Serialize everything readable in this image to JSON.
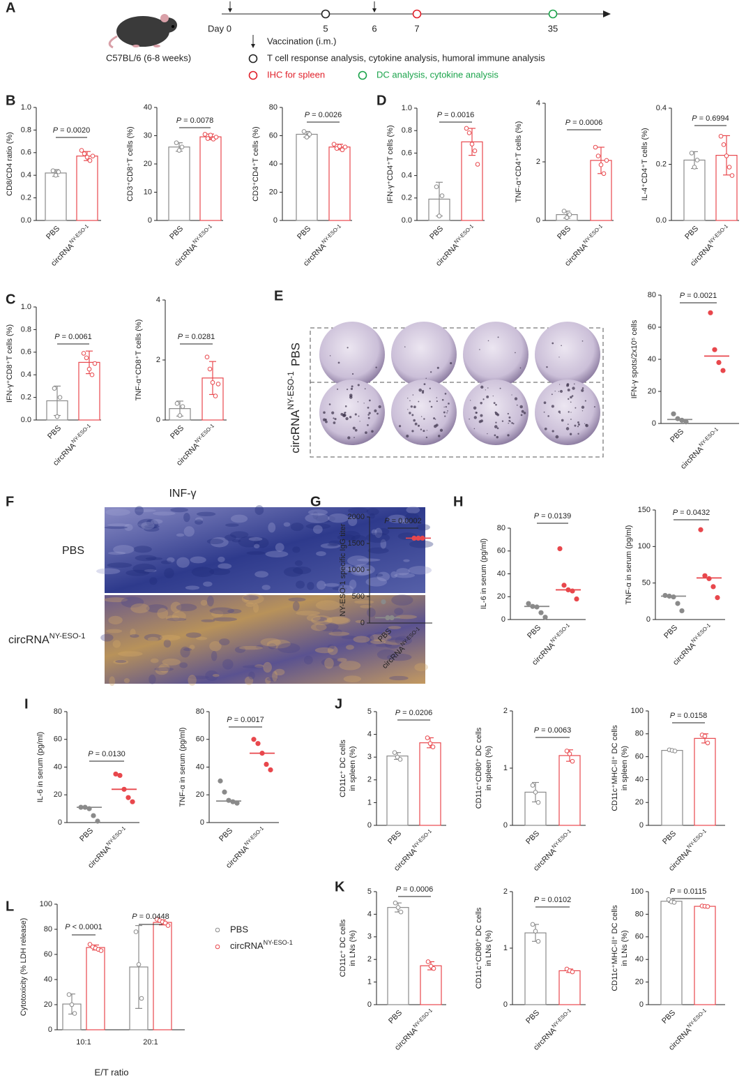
{
  "timeline": {
    "panel": "A",
    "strain": "C57BL/6 (6-8 weeks)",
    "days": [
      "Day 0",
      "5",
      "6",
      "7",
      "35"
    ],
    "vaccination": "Vaccination (i.m.)",
    "legend": [
      {
        "text": "T cell response analysis, cytokine analysis, humoral immune analysis",
        "color": "#222222"
      },
      {
        "text": "IHC for spleen",
        "color": "#e0202a"
      },
      {
        "text": "DC analysis, cytokine analysis",
        "color": "#1aa34a"
      }
    ]
  },
  "elispot": {
    "panel": "E",
    "rows": [
      "PBS",
      {
        "text": "circRNA",
        "sup": "NY-ESO-1"
      }
    ]
  },
  "histology": {
    "panel": "F",
    "title": "INF-γ",
    "rows": [
      "PBS",
      {
        "text": "circRNA",
        "sup": "NY-ESO-1"
      }
    ]
  },
  "chart_data": [
    {
      "type": "bar",
      "panel": "B",
      "ylabel": "CD8/CD4 ratio (%)",
      "categories": [
        "PBS",
        {
          "text": "circRNA",
          "sup": "NY-ESO-1"
        }
      ],
      "colors": [
        "#8a8a8a",
        "#e8474c"
      ],
      "values": [
        0.42,
        0.57
      ],
      "errors": [
        0.03,
        0.04
      ],
      "points": [
        [
          0.44,
          0.4,
          0.43
        ],
        [
          0.62,
          0.59,
          0.56,
          0.53,
          0.57
        ]
      ],
      "ylim": [
        0,
        1
      ],
      "yticks": [
        {
          "value": 0,
          "label": "0.0"
        },
        0.2,
        0.4,
        0.6,
        0.8,
        {
          "value": 1,
          "label": "1.0"
        }
      ],
      "annotation": "P = 0.0020"
    },
    {
      "type": "bar",
      "ylabel": "CD3⁺CD8⁺T cells (%)",
      "categories": [
        "PBS",
        {
          "text": "circRNA",
          "sup": "NY-ESO-1"
        }
      ],
      "colors": [
        "#8a8a8a",
        "#e8474c"
      ],
      "values": [
        26,
        29.6
      ],
      "errors": [
        1.5,
        1
      ],
      "points": [
        [
          27.5,
          24.8,
          26
        ],
        [
          30.5,
          29,
          30.2,
          28.8,
          29.5
        ]
      ],
      "ylim": [
        0,
        40
      ],
      "yticks": [
        0,
        10,
        20,
        30,
        40
      ],
      "annotation": "P = 0.0078"
    },
    {
      "type": "bar",
      "ylabel": "CD3⁺CD4⁺T cells (%)",
      "categories": [
        "PBS",
        {
          "text": "circRNA",
          "sup": "NY-ESO-1"
        }
      ],
      "colors": [
        "#8a8a8a",
        "#e8474c"
      ],
      "values": [
        61,
        52
      ],
      "errors": [
        2,
        2
      ],
      "points": [
        [
          63,
          59,
          61
        ],
        [
          54,
          51,
          52.5,
          50,
          52
        ]
      ],
      "ylim": [
        0,
        80
      ],
      "yticks": [
        0,
        20,
        40,
        60,
        80
      ],
      "annotation": "P = 0.0026"
    },
    {
      "type": "bar",
      "panel": "D",
      "ylabel": "IFN-γ⁺CD4⁺T cells (%)",
      "categories": [
        "PBS",
        {
          "text": "circRNA",
          "sup": "NY-ESO-1"
        }
      ],
      "colors": [
        "#8a8a8a",
        "#e8474c"
      ],
      "values": [
        0.19,
        0.7
      ],
      "errors": [
        0.15,
        0.12
      ],
      "points": [
        [
          0.3,
          0.04,
          0.22
        ],
        [
          0.82,
          0.78,
          0.68,
          0.62,
          0.5
        ]
      ],
      "ylim": [
        0,
        1
      ],
      "yticks": [
        {
          "value": 0,
          "label": "0.0"
        },
        0.2,
        0.4,
        0.6,
        0.8,
        {
          "value": 1,
          "label": "1.0"
        }
      ],
      "annotation": "P = 0.0016"
    },
    {
      "type": "bar",
      "ylabel": "TNF-α⁺CD4⁺T cells (%)",
      "categories": [
        "PBS",
        {
          "text": "circRNA",
          "sup": "NY-ESO-1"
        }
      ],
      "colors": [
        "#8a8a8a",
        "#e8474c"
      ],
      "values": [
        0.2,
        2.05
      ],
      "errors": [
        0.12,
        0.45
      ],
      "points": [
        [
          0.32,
          0.1,
          0.2
        ],
        [
          2.5,
          2.2,
          1.9,
          1.6,
          2.05
        ]
      ],
      "ylim": [
        0,
        4
      ],
      "yticks": [
        0,
        2,
        4
      ],
      "annotation": "P = 0.0006"
    },
    {
      "type": "bar",
      "ylabel": "IL-4⁺CD4⁺T cells (%)",
      "categories": [
        "PBS",
        {
          "text": "circRNA",
          "sup": "NY-ESO-1"
        }
      ],
      "colors": [
        "#8a8a8a",
        "#e8474c"
      ],
      "values": [
        0.215,
        0.232
      ],
      "errors": [
        0.03,
        0.07
      ],
      "points": [
        [
          0.24,
          0.19,
          0.215
        ],
        [
          0.3,
          0.27,
          0.23,
          0.19,
          0.16
        ]
      ],
      "ylim": [
        0,
        0.4
      ],
      "yticks": [
        {
          "value": 0,
          "label": "0.0"
        },
        0.2,
        0.4
      ],
      "annotation": "P = 0.6994"
    },
    {
      "type": "bar",
      "panel": "C",
      "ylabel": "IFN-γ⁺CD8⁺T cells (%)",
      "categories": [
        "PBS",
        {
          "text": "circRNA",
          "sup": "NY-ESO-1"
        }
      ],
      "colors": [
        "#8a8a8a",
        "#e8474c"
      ],
      "values": [
        0.17,
        0.51
      ],
      "errors": [
        0.13,
        0.1
      ],
      "points": [
        [
          0.28,
          0.03,
          0.2
        ],
        [
          0.59,
          0.55,
          0.45,
          0.4,
          0.5
        ]
      ],
      "ylim": [
        0,
        1
      ],
      "yticks": [
        {
          "value": 0,
          "label": "0.0"
        },
        0.2,
        0.4,
        0.6,
        0.8,
        {
          "value": 1,
          "label": "1.0"
        }
      ],
      "annotation": "P = 0.0061"
    },
    {
      "type": "bar",
      "ylabel": "TNF-α⁺CD8⁺T cells (%)",
      "categories": [
        "PBS",
        {
          "text": "circRNA",
          "sup": "NY-ESO-1"
        }
      ],
      "colors": [
        "#8a8a8a",
        "#e8474c"
      ],
      "values": [
        0.38,
        1.4
      ],
      "errors": [
        0.25,
        0.55
      ],
      "points": [
        [
          0.55,
          0.15,
          0.45
        ],
        [
          2.1,
          1.7,
          1.25,
          0.8,
          1.2
        ]
      ],
      "ylim": [
        0,
        4
      ],
      "yticks": [
        0,
        2,
        4
      ],
      "annotation": "P = 0.0281"
    },
    {
      "type": "dot",
      "ylabel": "IFN-γ spots/2x10⁵ cells",
      "categories": [
        "PBS",
        {
          "text": "circRNA",
          "sup": "NY-ESO-1"
        }
      ],
      "colors": [
        "#8a8a8a",
        "#e8474c"
      ],
      "values": [
        2.5,
        42
      ],
      "points": [
        [
          6,
          3,
          2,
          1
        ],
        [
          69,
          46,
          38,
          33
        ]
      ],
      "ylim": [
        0,
        80
      ],
      "yticks": [
        0,
        20,
        40,
        60,
        80
      ],
      "annotation": "P = 0.0021"
    },
    {
      "type": "dot",
      "panel": "G",
      "ylabel": "NY-ESO-1 specific IgG titer",
      "categories": [
        "PBS",
        {
          "text": "circRNA",
          "sup": "NY-ESO-1"
        }
      ],
      "colors": [
        "#8a8a8a",
        "#e8474c"
      ],
      "values": [
        100,
        1600
      ],
      "points": [
        [
          400,
          100,
          100
        ],
        [
          1600,
          1600,
          1600
        ]
      ],
      "ylim": [
        0,
        2000
      ],
      "yticks": [
        0,
        500,
        1000,
        1500,
        2000
      ],
      "annotation": "P = 0.0002"
    },
    {
      "type": "dot",
      "panel": "H",
      "ylabel": "IL-6 in serum (pg/ml)",
      "categories": [
        "PBS",
        {
          "text": "circRNA",
          "sup": "NY-ESO-1"
        }
      ],
      "colors": [
        "#8a8a8a",
        "#e8474c"
      ],
      "values": [
        11.5,
        26
      ],
      "points": [
        [
          14,
          11.5,
          11,
          6,
          2
        ],
        [
          62,
          30,
          26,
          25,
          18
        ]
      ],
      "ylim": [
        0,
        80
      ],
      "yticks": [
        0,
        20,
        40,
        60,
        80
      ],
      "annotation": "P = 0.0139"
    },
    {
      "type": "dot",
      "ylabel": "TNF-α in serum (pg/ml)",
      "categories": [
        "PBS",
        {
          "text": "circRNA",
          "sup": "NY-ESO-1"
        }
      ],
      "colors": [
        "#8a8a8a",
        "#e8474c"
      ],
      "values": [
        32,
        57
      ],
      "points": [
        [
          33,
          32,
          31,
          22,
          12
        ],
        [
          123,
          60,
          56,
          45,
          30
        ]
      ],
      "ylim": [
        0,
        150
      ],
      "yticks": [
        0,
        50,
        100,
        150
      ],
      "annotation": "P = 0.0432"
    },
    {
      "type": "dot",
      "panel": "I",
      "ylabel": "IL-6 in serum (pg/ml)",
      "categories": [
        "PBS",
        {
          "text": "circRNA",
          "sup": "NY-ESO-1"
        }
      ],
      "colors": [
        "#8a8a8a",
        "#e8474c"
      ],
      "values": [
        11,
        24
      ],
      "points": [
        [
          11,
          11,
          10,
          5,
          1
        ],
        [
          35,
          34,
          24,
          18,
          15
        ]
      ],
      "ylim": [
        0,
        80
      ],
      "yticks": [
        0,
        20,
        40,
        60,
        80
      ],
      "annotation": "P = 0.0130"
    },
    {
      "type": "dot",
      "ylabel": "TNF-α in serum (pg/ml)",
      "categories": [
        "PBS",
        {
          "text": "circRNA",
          "sup": "NY-ESO-1"
        }
      ],
      "colors": [
        "#8a8a8a",
        "#e8474c"
      ],
      "values": [
        15.5,
        50
      ],
      "points": [
        [
          30,
          22,
          16,
          15,
          14
        ],
        [
          60,
          57,
          50,
          42,
          38
        ]
      ],
      "ylim": [
        0,
        80
      ],
      "yticks": [
        0,
        20,
        40,
        60,
        80
      ],
      "annotation": "P = 0.0017"
    },
    {
      "type": "bar",
      "panel": "J",
      "ylabel": [
        "CD11c⁺ DC cells",
        "in spleen (%)"
      ],
      "categories": [
        "PBS",
        {
          "text": "circRNA",
          "sup": "NY-ESO-1"
        }
      ],
      "colors": [
        "#8a8a8a",
        "#e8474c"
      ],
      "values": [
        3.05,
        3.63
      ],
      "errors": [
        0.15,
        0.22
      ],
      "points": [
        [
          3.2,
          3.0,
          2.9
        ],
        [
          3.85,
          3.6,
          3.45
        ]
      ],
      "ylim": [
        0,
        5
      ],
      "yticks": [
        0,
        1,
        2,
        3,
        4,
        5
      ],
      "annotation": "P = 0.0206"
    },
    {
      "type": "bar",
      "ylabel": [
        "CD11c⁺CD80⁺ DC cells",
        "in spleen (%)"
      ],
      "categories": [
        "PBS",
        {
          "text": "circRNA",
          "sup": "NY-ESO-1"
        }
      ],
      "colors": [
        "#8a8a8a",
        "#e8474c"
      ],
      "values": [
        0.58,
        1.22
      ],
      "errors": [
        0.17,
        0.1
      ],
      "points": [
        [
          0.7,
          0.58,
          0.4
        ],
        [
          1.3,
          1.25,
          1.12
        ]
      ],
      "ylim": [
        0,
        2
      ],
      "yticks": [
        0,
        1,
        2
      ],
      "annotation": "P = 0.0063"
    },
    {
      "type": "bar",
      "ylabel": [
        "CD11c⁺MHC-II⁺ DC cells",
        "in spleen (%)"
      ],
      "categories": [
        "PBS",
        {
          "text": "circRNA",
          "sup": "NY-ESO-1"
        }
      ],
      "colors": [
        "#8a8a8a",
        "#e8474c"
      ],
      "values": [
        65.5,
        76
      ],
      "errors": [
        0.6,
        4
      ],
      "points": [
        [
          66,
          65.5,
          65
        ],
        [
          79,
          78,
          72
        ]
      ],
      "ylim": [
        0,
        100
      ],
      "yticks": [
        0,
        20,
        40,
        60,
        80,
        100
      ],
      "annotation": "P = 0.0158"
    },
    {
      "type": "bar",
      "panel": "K",
      "ylabel": [
        "CD11c⁺ DC cells",
        "in LNs (%)"
      ],
      "categories": [
        "PBS",
        {
          "text": "circRNA",
          "sup": "NY-ESO-1"
        }
      ],
      "colors": [
        "#8a8a8a",
        "#e8474c"
      ],
      "values": [
        4.3,
        1.72
      ],
      "errors": [
        0.2,
        0.18
      ],
      "points": [
        [
          4.5,
          4.3,
          4.1
        ],
        [
          1.9,
          1.7,
          1.6
        ]
      ],
      "ylim": [
        0,
        5
      ],
      "yticks": [
        0,
        1,
        2,
        3,
        4,
        5
      ],
      "annotation": "P = 0.0006"
    },
    {
      "type": "bar",
      "ylabel": [
        "CD11c⁺CD80⁺ DC cells",
        "in LNs (%)"
      ],
      "categories": [
        "PBS",
        {
          "text": "circRNA",
          "sup": "NY-ESO-1"
        }
      ],
      "colors": [
        "#8a8a8a",
        "#e8474c"
      ],
      "values": [
        1.27,
        0.6
      ],
      "errors": [
        0.15,
        0.03
      ],
      "points": [
        [
          1.42,
          1.3,
          1.12
        ],
        [
          0.63,
          0.6,
          0.58
        ]
      ],
      "ylim": [
        0,
        2
      ],
      "yticks": [
        0,
        1,
        2
      ],
      "annotation": "P = 0.0102"
    },
    {
      "type": "bar",
      "ylabel": [
        "CD11c⁺MHC-II⁺ DC cells",
        "in LNs (%)"
      ],
      "categories": [
        "PBS",
        {
          "text": "circRNA",
          "sup": "NY-ESO-1"
        }
      ],
      "colors": [
        "#8a8a8a",
        "#e8474c"
      ],
      "values": [
        91.5,
        87
      ],
      "errors": [
        1,
        0.3
      ],
      "points": [
        [
          93,
          91,
          90.5
        ],
        [
          87.3,
          87,
          86.8
        ]
      ],
      "ylim": [
        0,
        100
      ],
      "yticks": [
        0,
        20,
        40,
        60,
        80,
        100
      ],
      "annotation": "P = 0.0115"
    },
    {
      "type": "grouped_bar",
      "panel": "L",
      "ylabel": "Cytotoxicity (% LDH release)",
      "xlabel": "E/T ratio",
      "categories": [
        "10:1",
        "20:1"
      ],
      "series": [
        {
          "name": "PBS",
          "color": "#8a8a8a",
          "values": [
            20.5,
            50
          ],
          "errors": [
            8,
            33
          ],
          "points": [
            [
              28,
              20,
              13
            ],
            [
              78,
              52,
              25
            ]
          ]
        },
        {
          "name": {
            "text": "circRNA",
            "sup": "NY-ESO-1"
          },
          "color": "#e8474c",
          "values": [
            65.5,
            85.5
          ],
          "errors": [
            2,
            2
          ],
          "points": [
            [
              68,
              66,
              65,
              64,
              63
            ],
            [
              88,
              87,
              86,
              85,
              83
            ]
          ]
        }
      ],
      "ylim": [
        0,
        100
      ],
      "yticks": [
        0,
        20,
        40,
        60,
        80,
        100
      ],
      "annotations": [
        "P < 0.0001",
        "P = 0.0448"
      ]
    }
  ]
}
